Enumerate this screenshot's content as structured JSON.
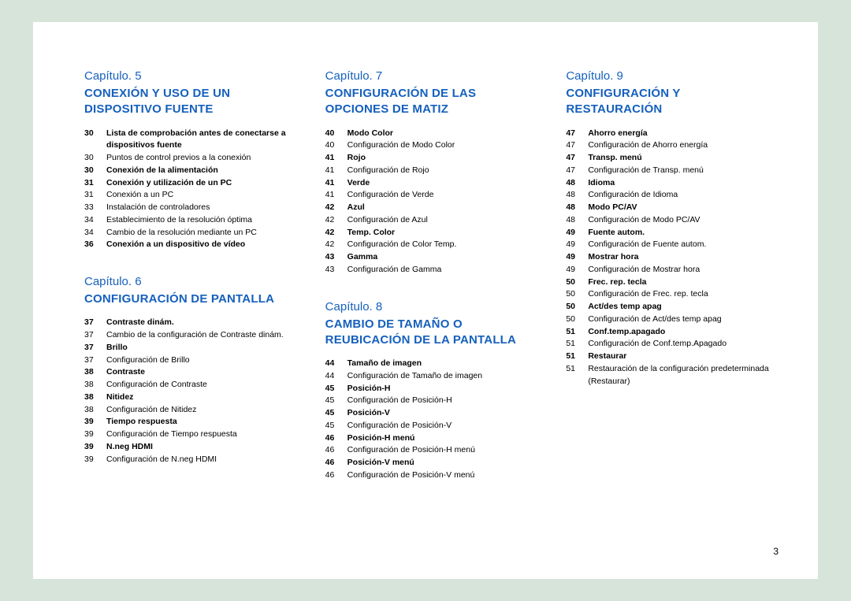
{
  "page_number": "3",
  "columns": [
    [
      {
        "label": "Capítulo. 5",
        "title": "CONEXIÓN Y USO DE UN DISPOSITIVO FUENTE",
        "items": [
          {
            "page": "30",
            "text": "Lista de comprobación antes de conectarse a dispositivos fuente",
            "bold": true
          },
          {
            "page": "30",
            "text": "Puntos de control previos a la conexión",
            "bold": false
          },
          {
            "page": "30",
            "text": "Conexión de la alimentación",
            "bold": true
          },
          {
            "page": "31",
            "text": "Conexión y utilización de un PC",
            "bold": true
          },
          {
            "page": "31",
            "text": "Conexión a un PC",
            "bold": false
          },
          {
            "page": "33",
            "text": "Instalación de controladores",
            "bold": false
          },
          {
            "page": "34",
            "text": "Establecimiento de la resolución óptima",
            "bold": false
          },
          {
            "page": "34",
            "text": "Cambio de la resolución mediante un PC",
            "bold": false
          },
          {
            "page": "36",
            "text": "Conexión a un dispositivo de vídeo",
            "bold": true
          }
        ]
      },
      {
        "label": "Capítulo. 6",
        "title": "CONFIGURACIÓN DE PANTALLA",
        "items": [
          {
            "page": "37",
            "text": "Contraste dinám.",
            "bold": true
          },
          {
            "page": "37",
            "text": "Cambio de la configuración de Contraste dinám.",
            "bold": false
          },
          {
            "page": "37",
            "text": "Brillo",
            "bold": true
          },
          {
            "page": "37",
            "text": "Configuración de Brillo",
            "bold": false
          },
          {
            "page": "38",
            "text": "Contraste",
            "bold": true
          },
          {
            "page": "38",
            "text": "Configuración de Contraste",
            "bold": false
          },
          {
            "page": "38",
            "text": "Nitidez",
            "bold": true
          },
          {
            "page": "38",
            "text": "Configuración de Nitidez",
            "bold": false
          },
          {
            "page": "39",
            "text": "Tiempo respuesta",
            "bold": true
          },
          {
            "page": "39",
            "text": "Configuración de Tiempo respuesta",
            "bold": false
          },
          {
            "page": "39",
            "text": "N.neg HDMI",
            "bold": true
          },
          {
            "page": "39",
            "text": "Configuración de N.neg HDMI",
            "bold": false
          }
        ]
      }
    ],
    [
      {
        "label": "Capítulo. 7",
        "title": "CONFIGURACIÓN DE LAS OPCIONES DE MATIZ",
        "items": [
          {
            "page": "40",
            "text": "Modo Color",
            "bold": true
          },
          {
            "page": "40",
            "text": "Configuración de Modo Color",
            "bold": false
          },
          {
            "page": "41",
            "text": "Rojo",
            "bold": true
          },
          {
            "page": "41",
            "text": "Configuración de Rojo",
            "bold": false
          },
          {
            "page": "41",
            "text": "Verde",
            "bold": true
          },
          {
            "page": "41",
            "text": "Configuración de Verde",
            "bold": false
          },
          {
            "page": "42",
            "text": "Azul",
            "bold": true
          },
          {
            "page": "42",
            "text": "Configuración de Azul",
            "bold": false
          },
          {
            "page": "42",
            "text": "Temp. Color",
            "bold": true
          },
          {
            "page": "42",
            "text": "Configuración de Color Temp.",
            "bold": false
          },
          {
            "page": "43",
            "text": "Gamma",
            "bold": true
          },
          {
            "page": "43",
            "text": "Configuración de Gamma",
            "bold": false
          }
        ]
      },
      {
        "label": "Capítulo. 8",
        "title": "CAMBIO DE TAMAÑO O REUBICACIÓN DE LA PANTALLA",
        "items": [
          {
            "page": "44",
            "text": "Tamaño de imagen",
            "bold": true
          },
          {
            "page": "44",
            "text": "Configuración de Tamaño de imagen",
            "bold": false
          },
          {
            "page": "45",
            "text": "Posición-H",
            "bold": true
          },
          {
            "page": "45",
            "text": "Configuración de Posición-H",
            "bold": false
          },
          {
            "page": "45",
            "text": "Posición-V",
            "bold": true
          },
          {
            "page": "45",
            "text": "Configuración de Posición-V",
            "bold": false
          },
          {
            "page": "46",
            "text": "Posición-H menú",
            "bold": true
          },
          {
            "page": "46",
            "text": "Configuración de Posición-H menú",
            "bold": false
          },
          {
            "page": "46",
            "text": "Posición-V menú",
            "bold": true
          },
          {
            "page": "46",
            "text": "Configuración de Posición-V menú",
            "bold": false
          }
        ]
      }
    ],
    [
      {
        "label": "Capítulo. 9",
        "title": "CONFIGURACIÓN Y RESTAURACIÓN",
        "items": [
          {
            "page": "47",
            "text": "Ahorro energía",
            "bold": true
          },
          {
            "page": "47",
            "text": "Configuración de Ahorro energía",
            "bold": false
          },
          {
            "page": "47",
            "text": "Transp. menú",
            "bold": true
          },
          {
            "page": "47",
            "text": "Configuración de Transp. menú",
            "bold": false
          },
          {
            "page": "48",
            "text": "Idioma",
            "bold": true
          },
          {
            "page": "48",
            "text": "Configuración de Idioma",
            "bold": false
          },
          {
            "page": "48",
            "text": "Modo PC/AV",
            "bold": true
          },
          {
            "page": "48",
            "text": "Configuración de Modo PC/AV",
            "bold": false
          },
          {
            "page": "49",
            "text": "Fuente autom.",
            "bold": true
          },
          {
            "page": "49",
            "text": "Configuración de Fuente autom.",
            "bold": false
          },
          {
            "page": "49",
            "text": "Mostrar hora",
            "bold": true
          },
          {
            "page": "49",
            "text": "Configuración de Mostrar hora",
            "bold": false
          },
          {
            "page": "50",
            "text": "Frec. rep. tecla",
            "bold": true
          },
          {
            "page": "50",
            "text": "Configuración de Frec. rep. tecla",
            "bold": false
          },
          {
            "page": "50",
            "text": "Act/des temp apag",
            "bold": true
          },
          {
            "page": "50",
            "text": "Configuración de Act/des temp apag",
            "bold": false
          },
          {
            "page": "51",
            "text": "Conf.temp.apagado",
            "bold": true
          },
          {
            "page": "51",
            "text": "Configuración de Conf.temp.Apagado",
            "bold": false
          },
          {
            "page": "51",
            "text": "Restaurar",
            "bold": true
          },
          {
            "page": "51",
            "text": "Restauración de la configuración predeterminada (Restaurar)",
            "bold": false
          }
        ]
      }
    ]
  ]
}
